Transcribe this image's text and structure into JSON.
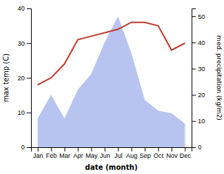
{
  "chart_data": {
    "type": "line",
    "categories": [
      "Jan",
      "Feb",
      "Mar",
      "Apr",
      "May",
      "Jun",
      "Jul",
      "Aug",
      "Sep",
      "Oct",
      "Nov",
      "Dec"
    ],
    "xlabel": "date (month)",
    "ylabel": "max temp (C)",
    "y2label": "med. precipitation (kg/m2)",
    "series": [
      {
        "type": "area",
        "axis": "y2",
        "color": "#b8c4f0",
        "values": [
          11,
          20,
          11,
          22,
          28,
          40,
          50,
          36,
          18,
          14,
          13,
          9
        ]
      },
      {
        "type": "line",
        "color": "#c0392b",
        "values": [
          18,
          20,
          24,
          31,
          32,
          33,
          34,
          36,
          36,
          35,
          28,
          30
        ]
      }
    ],
    "ylim": [
      0,
      40
    ],
    "yticks": [
      0,
      10,
      20,
      30,
      40
    ],
    "y2lim": [
      0,
      53
    ],
    "y2ticks": [
      0,
      10,
      20,
      30,
      40,
      50
    ],
    "grid": false
  }
}
